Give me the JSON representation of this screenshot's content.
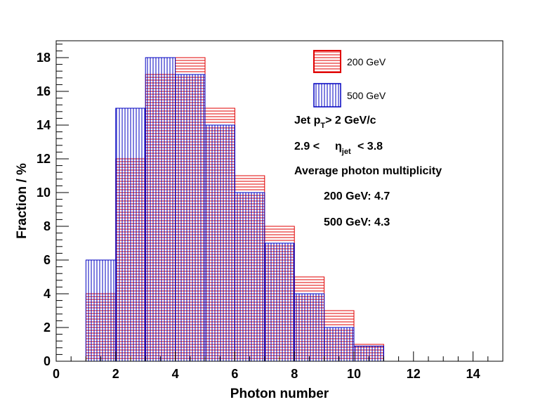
{
  "chart_data": {
    "type": "bar",
    "xlabel": "Photon number",
    "ylabel": "Fraction / %",
    "xlim": [
      0,
      15
    ],
    "ylim": [
      0,
      19
    ],
    "x_ticks": [
      0,
      2,
      4,
      6,
      8,
      10,
      12,
      14
    ],
    "y_ticks": [
      0,
      2,
      4,
      6,
      8,
      10,
      12,
      14,
      16,
      18
    ],
    "bin_edges": [
      1,
      2,
      3,
      4,
      5,
      6,
      7,
      8,
      9,
      10,
      11
    ],
    "series": [
      {
        "name": "200 GeV",
        "values": [
          4,
          12,
          17,
          18,
          15,
          11,
          8,
          5,
          3,
          1
        ],
        "color": "#e00000",
        "hatch": "horizontal"
      },
      {
        "name": "500 GeV",
        "values": [
          6,
          15,
          18,
          17,
          14,
          10,
          7,
          4,
          2,
          0.9
        ],
        "color": "#0000c0",
        "hatch": "vertical"
      }
    ],
    "legend_placement": "top-right",
    "grid": false,
    "annotations": {
      "cut_prefix": "Jet p",
      "cut_sub": "T",
      "cut_suffix": "> 2 GeV/c",
      "eta_prefix": "2.9 <",
      "eta_symbol": "η",
      "eta_sub": "jet",
      "eta_suffix": "< 3.8",
      "avg_title": "Average photon multiplicity",
      "avg_200": "200 GeV: 4.7",
      "avg_500": "500 GeV: 4.3"
    }
  }
}
